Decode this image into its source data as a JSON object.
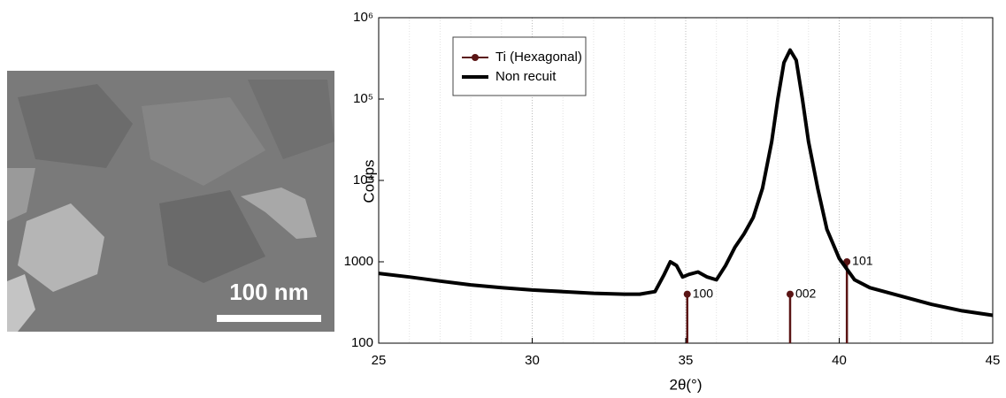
{
  "image": {
    "scale_bar": "100 nm"
  },
  "chart_data": {
    "type": "line",
    "ylabel": "Coups",
    "xlabel": "2θ(°)",
    "xlim": [
      25,
      45
    ],
    "xticks": [
      25,
      30,
      35,
      40,
      45
    ],
    "x_minor_ticks": [
      26,
      27,
      28,
      29,
      31,
      32,
      33,
      34,
      36,
      37,
      38,
      39,
      41,
      42,
      43,
      44
    ],
    "ylim": [
      100,
      1000000
    ],
    "ylog": true,
    "yticks": [
      100,
      1000,
      {
        "value": 10000,
        "label": "10⁴"
      },
      {
        "value": 100000,
        "label": "10⁵"
      },
      {
        "value": 1000000,
        "label": "10⁶"
      }
    ],
    "grid": "x",
    "legend": "upper left",
    "series": [
      {
        "name": "Ti (Hexagonal)",
        "color": "#5a1414",
        "style": "stem",
        "x": [
          35.05,
          38.4,
          40.25
        ],
        "values": [
          400,
          400,
          1000
        ],
        "labels": [
          "100",
          "002",
          "101"
        ]
      },
      {
        "name": "Non recuit",
        "color": "#000000",
        "x": [
          25,
          26,
          27,
          28,
          29,
          30,
          31,
          32,
          33,
          33.5,
          34,
          34.3,
          34.5,
          34.7,
          34.9,
          35.1,
          35.4,
          35.7,
          36,
          36.3,
          36.6,
          36.9,
          37.2,
          37.5,
          37.8,
          38.0,
          38.2,
          38.4,
          38.6,
          38.8,
          39.0,
          39.3,
          39.6,
          40.0,
          40.5,
          41,
          42,
          43,
          44,
          45
        ],
        "values": [
          720,
          650,
          580,
          520,
          480,
          450,
          430,
          410,
          400,
          400,
          430,
          700,
          1000,
          900,
          650,
          700,
          750,
          650,
          600,
          900,
          1500,
          2200,
          3500,
          8000,
          30000,
          100000,
          280000,
          400000,
          300000,
          100000,
          30000,
          8000,
          2500,
          1100,
          600,
          480,
          380,
          300,
          250,
          220
        ]
      }
    ]
  }
}
